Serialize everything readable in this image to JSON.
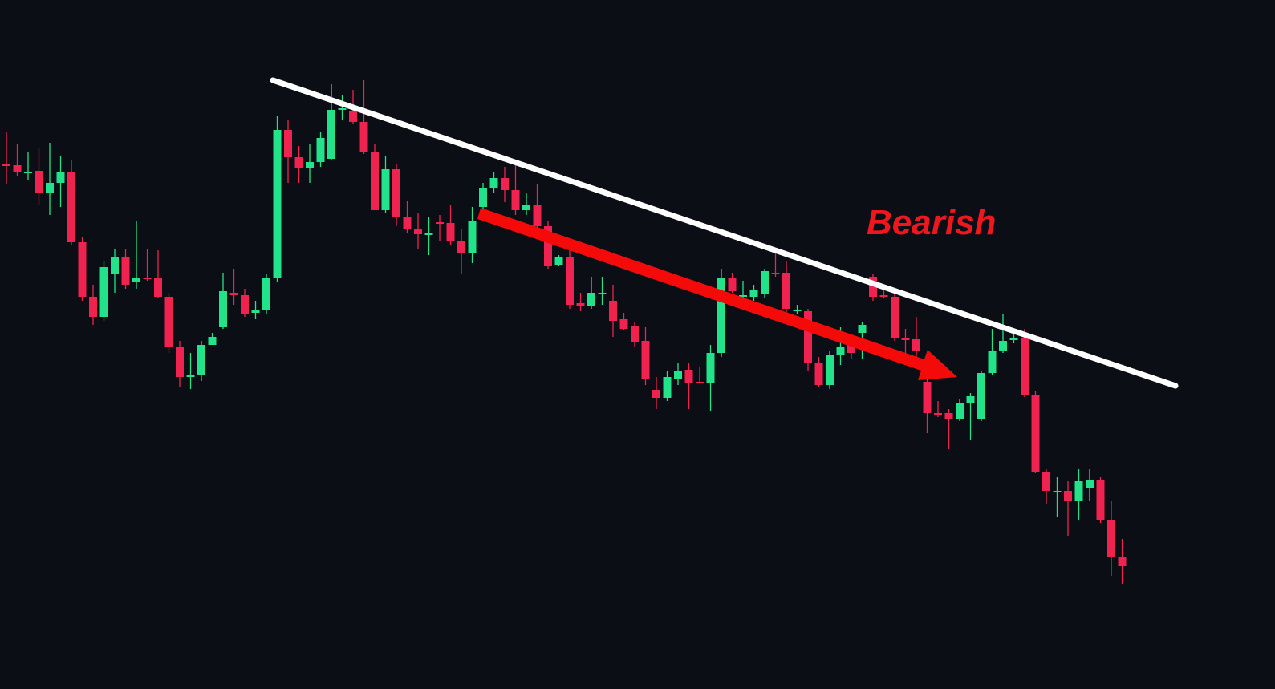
{
  "chart_data": {
    "type": "candlestick",
    "annotation": "Bearish",
    "up_color": "#22e38a",
    "down_color": "#f0224f",
    "ylim": [
      141,
      1000
    ],
    "open": [
      795,
      794,
      785,
      787,
      760,
      772,
      786,
      698,
      630,
      605,
      658,
      680,
      648,
      654,
      653,
      630,
      567,
      530,
      532,
      570,
      592,
      635,
      632,
      610,
      613,
      653,
      838,
      804,
      790,
      798,
      802,
      863,
      862,
      848,
      810,
      738,
      789,
      730,
      714,
      709,
      723,
      722,
      700,
      685,
      742,
      766,
      778,
      763,
      738,
      745,
      718,
      670,
      680,
      622,
      618,
      633,
      625,
      602,
      594,
      575,
      514,
      504,
      528,
      539,
      524,
      523,
      560,
      653,
      630,
      630,
      633,
      660,
      660,
      612,
      612,
      548,
      520,
      558,
      570,
      585,
      655,
      632,
      630,
      578,
      577,
      524,
      485,
      485,
      477,
      498,
      478,
      535,
      562,
      576,
      578,
      508,
      412,
      388,
      388,
      375,
      392,
      402,
      352,
      306
    ],
    "high": [
      835,
      820,
      810,
      815,
      822,
      805,
      800,
      705,
      645,
      675,
      690,
      690,
      725,
      690,
      688,
      635,
      575,
      560,
      575,
      585,
      660,
      665,
      640,
      625,
      658,
      855,
      850,
      818,
      820,
      835,
      895,
      882,
      888,
      900,
      820,
      805,
      795,
      750,
      735,
      730,
      732,
      745,
      715,
      742,
      772,
      785,
      792,
      795,
      760,
      770,
      725,
      682,
      700,
      635,
      655,
      655,
      645,
      610,
      598,
      592,
      530,
      538,
      548,
      548,
      542,
      570,
      665,
      660,
      650,
      645,
      665,
      685,
      675,
      620,
      615,
      555,
      562,
      592,
      582,
      598,
      658,
      645,
      635,
      590,
      605,
      530,
      500,
      490,
      502,
      510,
      538,
      590,
      608,
      590,
      590,
      512,
      415,
      405,
      400,
      415,
      415,
      405,
      375,
      328
    ],
    "low": [
      770,
      780,
      775,
      745,
      732,
      742,
      695,
      625,
      595,
      600,
      635,
      640,
      640,
      650,
      628,
      560,
      518,
      515,
      525,
      570,
      590,
      620,
      605,
      602,
      608,
      648,
      772,
      772,
      772,
      792,
      800,
      850,
      845,
      808,
      738,
      735,
      718,
      710,
      690,
      682,
      700,
      695,
      658,
      672,
      735,
      760,
      748,
      732,
      732,
      715,
      665,
      668,
      615,
      612,
      615,
      620,
      580,
      588,
      568,
      520,
      490,
      500,
      520,
      490,
      522,
      488,
      555,
      635,
      628,
      625,
      628,
      655,
      610,
      608,
      538,
      518,
      515,
      545,
      552,
      552,
      625,
      628,
      575,
      560,
      555,
      460,
      480,
      440,
      475,
      452,
      475,
      533,
      560,
      572,
      505,
      410,
      372,
      355,
      332,
      352,
      375,
      348,
      282,
      272
    ],
    "close": [
      794,
      785,
      786,
      760,
      772,
      786,
      698,
      630,
      605,
      667,
      680,
      645,
      654,
      653,
      630,
      567,
      530,
      533,
      570,
      580,
      637,
      632,
      608,
      613,
      653,
      838,
      804,
      790,
      798,
      828,
      863,
      865,
      848,
      810,
      738,
      789,
      730,
      714,
      708,
      709,
      722,
      700,
      685,
      725,
      766,
      778,
      763,
      738,
      745,
      718,
      668,
      680,
      620,
      618,
      635,
      635,
      600,
      590,
      573,
      528,
      504,
      530,
      538,
      523,
      523,
      560,
      653,
      637,
      632,
      638,
      662,
      658,
      615,
      614,
      548,
      520,
      558,
      568,
      560,
      595,
      630,
      630,
      578,
      577,
      562,
      485,
      483,
      477,
      498,
      506,
      535,
      562,
      575,
      578,
      508,
      412,
      388,
      388,
      375,
      400,
      402,
      352,
      306,
      294
    ]
  }
}
